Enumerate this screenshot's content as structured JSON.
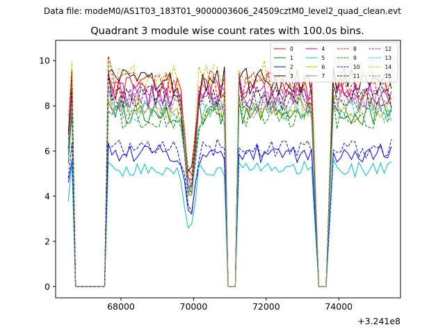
{
  "figure": {
    "suptitle": "Data file: modeM0/AS1T03_183T01_9000003606_24509cztM0_level2_quad_clean.evt"
  },
  "chart_data": {
    "type": "line",
    "title": "Quadrant 3 module wise count rates with 100.0s bins.",
    "xlabel": "",
    "ylabel": "",
    "x_offset_label": "+3.241e8",
    "xlim": [
      66200,
      75700
    ],
    "ylim": [
      -0.5,
      10.9
    ],
    "xticks": [
      68000,
      70000,
      72000,
      74000
    ],
    "xtick_labels": [
      "68000",
      "70000",
      "72000",
      "74000"
    ],
    "yticks": [
      0,
      2,
      4,
      6,
      8,
      10
    ],
    "ytick_labels": [
      "0",
      "2",
      "4",
      "6",
      "8",
      "10"
    ],
    "legend": {
      "placement": "top-right",
      "ncol": 4
    },
    "segments": [
      {
        "on": [
          66550,
          66650
        ],
        "off": [
          66750,
          67550
        ]
      },
      {
        "on": [
          67650,
          70850
        ],
        "off": [
          70950,
          71150
        ]
      },
      {
        "on": [
          71250,
          73250
        ],
        "off": [
          73450,
          73750
        ]
      },
      {
        "on": [
          73850,
          75450
        ],
        "off": null
      }
    ],
    "dip": {
      "center": 69900,
      "bottom_ratio": 0.45,
      "half_width": 250
    },
    "series": [
      {
        "name": "0",
        "color": "#ff0000",
        "dash": "solid",
        "level": 8.9
      },
      {
        "name": "1",
        "color": "#008000",
        "dash": "solid",
        "level": 7.7
      },
      {
        "name": "2",
        "color": "#0000ff",
        "dash": "solid",
        "level": 5.9
      },
      {
        "name": "3",
        "color": "#000000",
        "dash": "solid",
        "level": 9.1
      },
      {
        "name": "4",
        "color": "#bf00bf",
        "dash": "solid",
        "level": 8.5
      },
      {
        "name": "5",
        "color": "#00bfbf",
        "dash": "solid",
        "level": 5.2
      },
      {
        "name": "6",
        "color": "#bfbf00",
        "dash": "solid",
        "level": 7.9
      },
      {
        "name": "7",
        "color": "#808080",
        "dash": "solid",
        "level": 8.2
      },
      {
        "name": "8",
        "color": "#ff0000",
        "dash": "dashed",
        "level": 9.0
      },
      {
        "name": "9",
        "color": "#008000",
        "dash": "dashed",
        "level": 7.5
      },
      {
        "name": "10",
        "color": "#0000ff",
        "dash": "dashed",
        "level": 6.1
      },
      {
        "name": "11",
        "color": "#000000",
        "dash": "dashed",
        "level": 8.4
      },
      {
        "name": "12",
        "color": "#bf00bf",
        "dash": "dashed",
        "level": 8.3
      },
      {
        "name": "13",
        "color": "#00bfbf",
        "dash": "dashed",
        "level": 7.8
      },
      {
        "name": "14",
        "color": "#bfbf00",
        "dash": "dashed",
        "level": 9.4
      },
      {
        "name": "15",
        "color": "#808080",
        "dash": "dashed",
        "level": 8.0
      }
    ]
  }
}
